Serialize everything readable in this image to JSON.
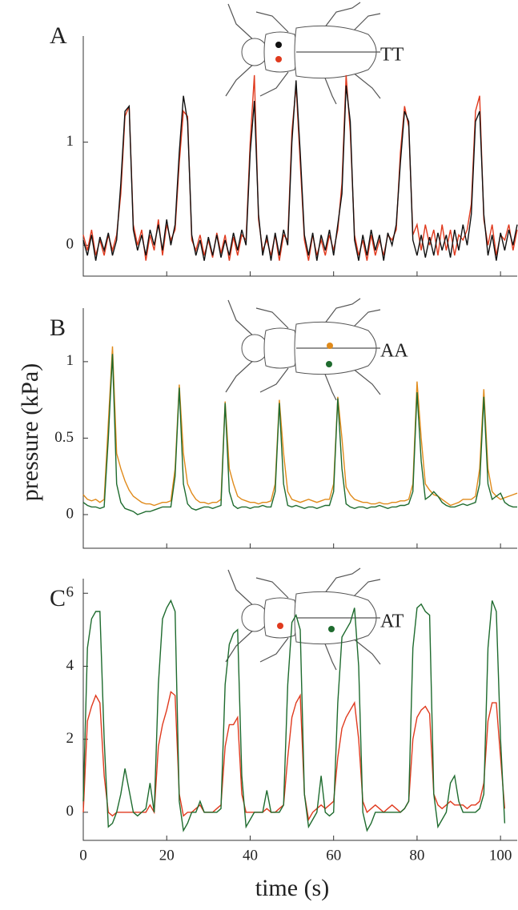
{
  "chart_data": [
    {
      "type": "line",
      "panel_label": "A",
      "annotation": "TT",
      "xlim": [
        0,
        104
      ],
      "xticks": [
        0,
        20,
        40,
        60,
        80,
        100
      ],
      "show_xtick_labels": false,
      "ylim": [
        -0.3,
        2.03
      ],
      "yticks": [
        0,
        1
      ],
      "x": [
        0,
        1,
        2,
        3,
        4,
        5,
        6,
        7,
        8,
        9,
        10,
        11,
        12,
        13,
        14,
        15,
        16,
        17,
        18,
        19,
        20,
        21,
        22,
        23,
        24,
        25,
        26,
        27,
        28,
        29,
        30,
        31,
        32,
        33,
        34,
        35,
        36,
        37,
        38,
        39,
        40,
        41,
        42,
        43,
        44,
        45,
        46,
        47,
        48,
        49,
        50,
        51,
        52,
        53,
        54,
        55,
        56,
        57,
        58,
        59,
        60,
        61,
        62,
        63,
        64,
        65,
        66,
        67,
        68,
        69,
        70,
        71,
        72,
        73,
        74,
        75,
        76,
        77,
        78,
        79,
        80,
        81,
        82,
        83,
        84,
        85,
        86,
        87,
        88,
        89,
        90,
        91,
        92,
        93,
        94,
        95,
        96,
        97,
        98,
        99,
        100,
        101,
        102,
        103,
        104
      ],
      "series": [
        {
          "color": "#e03a1e",
          "values": [
            0.1,
            -0.05,
            0.15,
            -0.1,
            0.05,
            -0.1,
            0.1,
            -0.05,
            0.1,
            0.5,
            1.25,
            1.35,
            0.2,
            0.0,
            0.15,
            -0.15,
            0.1,
            -0.05,
            0.25,
            -0.1,
            0.2,
            0.05,
            0.15,
            0.8,
            1.3,
            1.25,
            0.05,
            -0.05,
            0.1,
            -0.1,
            0.05,
            -0.12,
            0.12,
            -0.08,
            0.1,
            -0.15,
            0.08,
            -0.1,
            0.1,
            0.05,
            1.0,
            1.65,
            0.25,
            -0.05,
            0.05,
            -0.1,
            0.1,
            -0.15,
            0.1,
            0.05,
            1.1,
            1.55,
            0.8,
            0.05,
            -0.15,
            0.1,
            -0.1,
            0.05,
            -0.1,
            0.1,
            -0.05,
            0.15,
            0.6,
            1.65,
            1.1,
            0.1,
            -0.1,
            0.05,
            -0.15,
            0.1,
            -0.1,
            0.05,
            -0.1,
            0.1,
            0.05,
            0.15,
            0.9,
            1.35,
            1.15,
            0.1,
            0.2,
            -0.05,
            0.2,
            0.0,
            0.15,
            -0.1,
            0.2,
            -0.05,
            0.15,
            -0.1,
            0.1,
            0.05,
            0.15,
            0.4,
            1.3,
            1.45,
            0.25,
            0.0,
            0.2,
            -0.1,
            0.1,
            0.05,
            0.2,
            -0.05,
            0.15
          ]
        },
        {
          "color": "#111111",
          "values": [
            0.05,
            -0.1,
            0.1,
            -0.15,
            0.08,
            -0.05,
            0.12,
            -0.1,
            0.05,
            0.6,
            1.3,
            1.35,
            0.15,
            -0.05,
            0.1,
            -0.1,
            0.15,
            0.0,
            0.2,
            -0.05,
            0.25,
            0.0,
            0.2,
            0.9,
            1.45,
            1.2,
            0.1,
            -0.1,
            0.05,
            -0.15,
            0.08,
            -0.1,
            0.1,
            -0.12,
            0.05,
            -0.1,
            0.12,
            -0.05,
            0.15,
            0.0,
            0.9,
            1.4,
            0.3,
            -0.1,
            0.1,
            -0.15,
            0.12,
            -0.1,
            0.15,
            0.0,
            1.0,
            1.6,
            0.9,
            0.1,
            -0.1,
            0.12,
            -0.15,
            0.1,
            -0.05,
            0.15,
            -0.1,
            0.2,
            0.5,
            1.55,
            1.2,
            0.05,
            -0.15,
            0.1,
            -0.1,
            0.15,
            -0.05,
            0.1,
            -0.15,
            0.12,
            0.0,
            0.2,
            0.8,
            1.3,
            1.2,
            0.05,
            -0.1,
            0.1,
            -0.12,
            0.08,
            -0.1,
            0.12,
            -0.05,
            0.1,
            -0.12,
            0.15,
            -0.05,
            0.2,
            0.0,
            0.3,
            1.2,
            1.3,
            0.3,
            -0.1,
            0.1,
            -0.15,
            0.12,
            -0.05,
            0.15,
            0.0,
            0.2
          ]
        }
      ]
    },
    {
      "type": "line",
      "panel_label": "B",
      "annotation": "AA",
      "ylabel": "pressure (kPa)",
      "xlim": [
        0,
        104
      ],
      "xticks": [
        0,
        20,
        40,
        60,
        80,
        100
      ],
      "show_xtick_labels": false,
      "ylim": [
        -0.22,
        1.35
      ],
      "yticks": [
        0,
        0.5,
        1
      ],
      "x": [
        0,
        1,
        2,
        3,
        4,
        5,
        6,
        7,
        8,
        9,
        10,
        11,
        12,
        13,
        14,
        15,
        16,
        17,
        18,
        19,
        20,
        21,
        22,
        23,
        24,
        25,
        26,
        27,
        28,
        29,
        30,
        31,
        32,
        33,
        34,
        35,
        36,
        37,
        38,
        39,
        40,
        41,
        42,
        43,
        44,
        45,
        46,
        47,
        48,
        49,
        50,
        51,
        52,
        53,
        54,
        55,
        56,
        57,
        58,
        59,
        60,
        61,
        62,
        63,
        64,
        65,
        66,
        67,
        68,
        69,
        70,
        71,
        72,
        73,
        74,
        75,
        76,
        77,
        78,
        79,
        80,
        81,
        82,
        83,
        84,
        85,
        86,
        87,
        88,
        89,
        90,
        91,
        92,
        93,
        94,
        95,
        96,
        97,
        98,
        99,
        100,
        101,
        102,
        103,
        104
      ],
      "series": [
        {
          "color": "#e08a1a",
          "values": [
            0.13,
            0.1,
            0.09,
            0.1,
            0.08,
            0.1,
            0.6,
            1.1,
            0.4,
            0.3,
            0.22,
            0.16,
            0.12,
            0.1,
            0.08,
            0.07,
            0.07,
            0.06,
            0.07,
            0.08,
            0.08,
            0.09,
            0.3,
            0.85,
            0.4,
            0.2,
            0.14,
            0.1,
            0.08,
            0.08,
            0.07,
            0.08,
            0.08,
            0.1,
            0.74,
            0.3,
            0.2,
            0.12,
            0.1,
            0.09,
            0.08,
            0.08,
            0.07,
            0.08,
            0.08,
            0.09,
            0.2,
            0.75,
            0.4,
            0.15,
            0.1,
            0.09,
            0.08,
            0.09,
            0.1,
            0.09,
            0.08,
            0.09,
            0.1,
            0.1,
            0.2,
            0.77,
            0.5,
            0.18,
            0.13,
            0.1,
            0.09,
            0.08,
            0.08,
            0.07,
            0.07,
            0.08,
            0.07,
            0.07,
            0.08,
            0.08,
            0.09,
            0.09,
            0.1,
            0.2,
            0.87,
            0.5,
            0.2,
            0.16,
            0.13,
            0.12,
            0.1,
            0.08,
            0.06,
            0.07,
            0.08,
            0.1,
            0.1,
            0.1,
            0.12,
            0.3,
            0.82,
            0.3,
            0.15,
            0.12,
            0.1,
            0.11,
            0.12,
            0.13,
            0.14
          ]
        },
        {
          "color": "#1e6b2e",
          "values": [
            0.08,
            0.06,
            0.05,
            0.05,
            0.04,
            0.05,
            0.5,
            1.05,
            0.2,
            0.08,
            0.04,
            0.03,
            0.02,
            0.0,
            0.01,
            0.02,
            0.02,
            0.03,
            0.04,
            0.05,
            0.05,
            0.05,
            0.25,
            0.83,
            0.2,
            0.07,
            0.04,
            0.03,
            0.04,
            0.05,
            0.05,
            0.04,
            0.05,
            0.06,
            0.73,
            0.15,
            0.06,
            0.04,
            0.05,
            0.05,
            0.04,
            0.05,
            0.05,
            0.06,
            0.05,
            0.05,
            0.15,
            0.73,
            0.2,
            0.06,
            0.05,
            0.06,
            0.05,
            0.04,
            0.05,
            0.05,
            0.04,
            0.05,
            0.06,
            0.06,
            0.15,
            0.76,
            0.3,
            0.07,
            0.05,
            0.04,
            0.05,
            0.05,
            0.04,
            0.05,
            0.05,
            0.06,
            0.05,
            0.04,
            0.05,
            0.05,
            0.06,
            0.06,
            0.07,
            0.15,
            0.8,
            0.35,
            0.1,
            0.12,
            0.15,
            0.12,
            0.08,
            0.06,
            0.05,
            0.05,
            0.06,
            0.07,
            0.06,
            0.07,
            0.08,
            0.2,
            0.77,
            0.2,
            0.1,
            0.12,
            0.14,
            0.08,
            0.06,
            0.05,
            0.05
          ]
        }
      ]
    },
    {
      "type": "line",
      "panel_label": "C",
      "annotation": "AT",
      "xlabel": "time (s)",
      "xlim": [
        0,
        104
      ],
      "xticks": [
        0,
        20,
        40,
        60,
        80,
        100
      ],
      "show_xtick_labels": true,
      "ylim": [
        -0.77,
        6.4
      ],
      "yticks": [
        0,
        2,
        4,
        6
      ],
      "x": [
        0,
        1,
        2,
        3,
        4,
        5,
        6,
        7,
        8,
        9,
        10,
        11,
        12,
        13,
        14,
        15,
        16,
        17,
        18,
        19,
        20,
        21,
        22,
        23,
        24,
        25,
        26,
        27,
        28,
        29,
        30,
        31,
        32,
        33,
        34,
        35,
        36,
        37,
        38,
        39,
        40,
        41,
        42,
        43,
        44,
        45,
        46,
        47,
        48,
        49,
        50,
        51,
        52,
        53,
        54,
        55,
        56,
        57,
        58,
        59,
        60,
        61,
        62,
        63,
        64,
        65,
        66,
        67,
        68,
        69,
        70,
        71,
        72,
        73,
        74,
        75,
        76,
        77,
        78,
        79,
        80,
        81,
        82,
        83,
        84,
        85,
        86,
        87,
        88,
        89,
        90,
        91,
        92,
        93,
        94,
        95,
        96,
        97,
        98,
        99,
        100,
        101
      ],
      "series": [
        {
          "color": "#e03a1e",
          "values": [
            0.0,
            2.5,
            2.9,
            3.2,
            3.0,
            1.0,
            0.0,
            -0.1,
            0.0,
            0.0,
            0.0,
            0.0,
            0.0,
            0.0,
            0.0,
            0.0,
            0.2,
            0.0,
            1.8,
            2.4,
            2.8,
            3.3,
            3.2,
            0.5,
            -0.1,
            0.0,
            0.0,
            0.1,
            0.2,
            0.0,
            0.0,
            0.0,
            0.1,
            0.2,
            1.8,
            2.4,
            2.4,
            2.6,
            0.5,
            0.0,
            0.0,
            0.0,
            0.0,
            0.0,
            0.1,
            0.0,
            0.0,
            0.1,
            0.2,
            1.5,
            2.6,
            3.0,
            3.2,
            0.5,
            -0.2,
            0.0,
            0.1,
            0.2,
            0.1,
            0.2,
            0.3,
            1.5,
            2.3,
            2.6,
            2.8,
            3.0,
            2.0,
            0.3,
            0.0,
            0.1,
            0.2,
            0.1,
            0.0,
            0.1,
            0.2,
            0.1,
            0.0,
            0.1,
            0.3,
            2.0,
            2.6,
            2.8,
            2.9,
            2.7,
            0.5,
            0.2,
            0.1,
            0.2,
            0.3,
            0.2,
            0.2,
            0.2,
            0.1,
            0.2,
            0.2,
            0.3,
            0.8,
            2.5,
            3.0,
            3.0,
            1.5,
            0.1
          ]
        },
        {
          "color": "#1e6b2e",
          "values": [
            0.3,
            4.5,
            5.3,
            5.5,
            5.5,
            2.0,
            -0.4,
            -0.3,
            0.0,
            0.5,
            1.2,
            0.6,
            0.0,
            -0.1,
            0.0,
            0.1,
            0.8,
            0.0,
            3.5,
            5.3,
            5.6,
            5.8,
            5.5,
            0.3,
            -0.5,
            -0.3,
            0.0,
            0.0,
            0.3,
            0.0,
            0.0,
            0.0,
            0.0,
            0.1,
            3.5,
            4.6,
            4.9,
            5.0,
            1.0,
            -0.4,
            -0.2,
            0.0,
            0.0,
            0.0,
            0.6,
            0.0,
            0.0,
            0.0,
            0.2,
            3.5,
            5.2,
            5.4,
            5.0,
            0.5,
            -0.4,
            -0.2,
            0.0,
            1.0,
            0.0,
            -0.1,
            0.0,
            3.0,
            4.8,
            5.0,
            5.2,
            5.6,
            4.0,
            0.0,
            -0.5,
            -0.3,
            0.0,
            0.0,
            0.0,
            0.0,
            0.0,
            0.0,
            0.0,
            0.1,
            0.3,
            4.5,
            5.6,
            5.7,
            5.5,
            5.4,
            0.5,
            -0.4,
            -0.2,
            0.0,
            0.8,
            1.0,
            0.3,
            0.0,
            0.0,
            0.0,
            0.0,
            0.1,
            0.5,
            4.5,
            5.8,
            5.5,
            2.0,
            -0.3
          ]
        }
      ]
    }
  ]
}
